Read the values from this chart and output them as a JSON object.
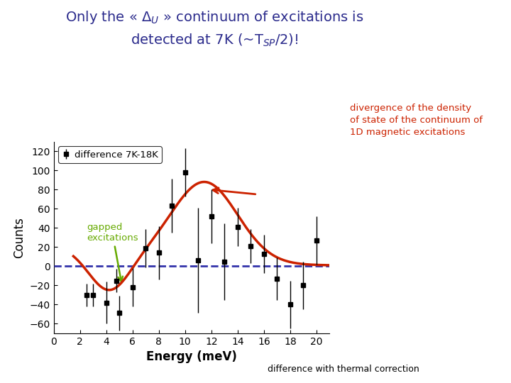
{
  "title_color": "#2b2b8c",
  "background_color": "#ffffff",
  "xlabel": "Energy (meV)",
  "ylabel": "Counts",
  "xlim": [
    0,
    21
  ],
  "ylim": [
    -70,
    130
  ],
  "xticks": [
    0,
    2,
    4,
    6,
    8,
    10,
    12,
    14,
    16,
    18,
    20
  ],
  "yticks": [
    -60,
    -40,
    -20,
    0,
    20,
    40,
    60,
    80,
    100,
    120
  ],
  "data_x": [
    2.5,
    3.0,
    4.0,
    4.8,
    5.0,
    6.0,
    7.0,
    8.0,
    9.0,
    10.0,
    11.0,
    12.0,
    13.0,
    14.0,
    15.0,
    16.0,
    17.0,
    18.0,
    19.0,
    20.0
  ],
  "data_y": [
    -30,
    -30,
    -38,
    -15,
    -49,
    -22,
    19,
    14,
    63,
    98,
    6,
    52,
    5,
    41,
    21,
    13,
    -13,
    -40,
    -20,
    27
  ],
  "data_yerr": [
    12,
    12,
    22,
    12,
    18,
    20,
    20,
    28,
    28,
    25,
    55,
    28,
    40,
    20,
    18,
    20,
    22,
    25,
    25,
    25
  ],
  "fit_color": "#cc2200",
  "dashed_color": "#3333aa",
  "legend_label": "difference 7K-18K",
  "annotation1_color": "#cc2200",
  "annotation2_color": "#66aa00",
  "footer_text": "difference with thermal correction"
}
